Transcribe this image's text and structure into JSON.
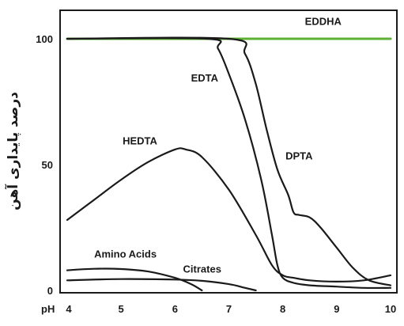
{
  "chart_data": {
    "type": "line",
    "title": "",
    "xlabel": "pH",
    "ylabel": "درصد پایداری آهن",
    "xlim": [
      4,
      10
    ],
    "ylim": [
      0,
      108
    ],
    "x_ticks": [
      4,
      5,
      6,
      7,
      8,
      9,
      10
    ],
    "x_tick_labels": [
      "4",
      "5",
      "6",
      "7",
      "8",
      "9",
      "10"
    ],
    "y_ticks": [
      0,
      50,
      100
    ],
    "y_tick_labels": [
      "0",
      "50",
      "100"
    ],
    "grid": false,
    "series": [
      {
        "name": "EDDHA",
        "color": "#5cb033",
        "label_color": "#4ea52a",
        "x": [
          4,
          10
        ],
        "y": [
          100,
          100
        ]
      },
      {
        "name": "EDTA",
        "color": "#1a1a1a",
        "label_color": "#1a1a1a",
        "x": [
          4.0,
          6.6,
          6.8,
          7.0,
          7.3,
          7.6,
          7.8,
          7.9,
          8.0,
          8.2,
          8.5,
          9.0,
          9.5,
          10.0
        ],
        "y": [
          100,
          100,
          96,
          86,
          68,
          44,
          22,
          10,
          5,
          3,
          2,
          1.5,
          1,
          1
        ]
      },
      {
        "name": "DPTA",
        "color": "#1a1a1a",
        "label_color": "#1a1a1a",
        "x": [
          4.0,
          7.0,
          7.3,
          7.5,
          7.7,
          7.9,
          8.1,
          8.2,
          8.3,
          8.5,
          8.7,
          9.0,
          9.3,
          9.6,
          10.0
        ],
        "y": [
          100,
          100,
          94,
          82,
          64,
          48,
          38,
          31,
          30,
          29,
          25,
          17,
          9,
          4,
          2
        ]
      },
      {
        "name": "HEDTA",
        "color": "#1a1a1a",
        "label_color": "#1a1a1a",
        "x": [
          4.0,
          4.5,
          5.0,
          5.5,
          6.0,
          6.2,
          6.5,
          7.0,
          7.5,
          7.8,
          8.0,
          8.2,
          8.5,
          9.0,
          9.5,
          10.0
        ],
        "y": [
          28,
          36,
          44,
          51,
          56,
          56,
          53,
          40,
          22,
          10,
          6,
          5,
          4,
          3.5,
          4,
          6
        ]
      },
      {
        "name": "Amino Acids",
        "color": "#1a1a1a",
        "label_color": "#1a1a1a",
        "x": [
          4.0,
          4.5,
          5.0,
          5.5,
          6.0,
          6.3,
          6.5
        ],
        "y": [
          8,
          8.6,
          8.5,
          7.5,
          5,
          2.5,
          0
        ]
      },
      {
        "name": "Citrates",
        "color": "#1a1a1a",
        "label_color": "#1a1a1a",
        "x": [
          4.0,
          5.0,
          6.0,
          6.5,
          7.0,
          7.3,
          7.5
        ],
        "y": [
          4,
          4.5,
          4.3,
          3.8,
          2.5,
          1,
          0
        ]
      }
    ]
  }
}
